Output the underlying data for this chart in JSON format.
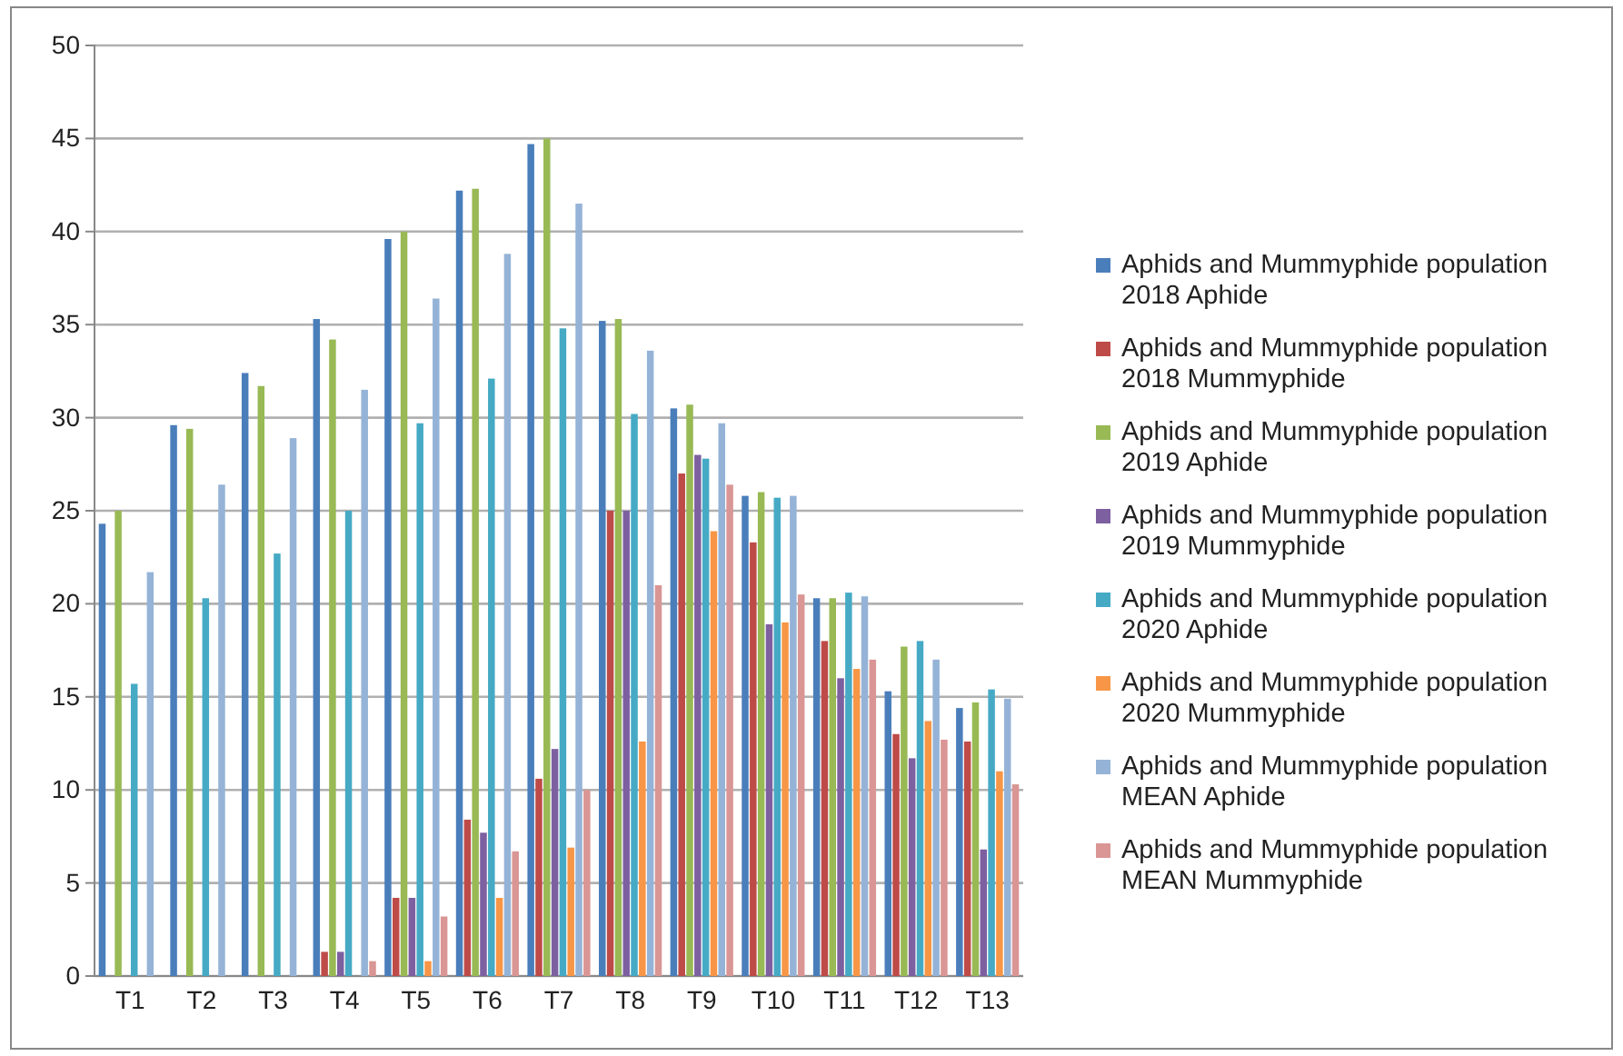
{
  "chart_data": {
    "type": "bar",
    "categories": [
      "T1",
      "T2",
      "T3",
      "T4",
      "T5",
      "T6",
      "T7",
      "T8",
      "T9",
      "T10",
      "T11",
      "T12",
      "T13"
    ],
    "series": [
      {
        "name": "Aphids and Mummyphide population  2018 Aphide",
        "color": "#4a7ebb",
        "values": [
          24.3,
          29.6,
          32.4,
          35.3,
          39.6,
          42.2,
          44.7,
          35.2,
          30.5,
          25.8,
          20.3,
          15.3,
          14.4
        ]
      },
      {
        "name": "Aphids and Mummyphide population  2018 Mummyphide",
        "color": "#be4b48",
        "values": [
          0,
          0,
          0,
          1.3,
          4.2,
          8.4,
          10.6,
          25,
          27,
          23.3,
          18,
          13,
          12.6
        ]
      },
      {
        "name": "Aphids and Mummyphide population  2019 Aphide",
        "color": "#98b954",
        "values": [
          25,
          29.4,
          31.7,
          34.2,
          40,
          42.3,
          45,
          35.3,
          30.7,
          26,
          20.3,
          17.7,
          14.7
        ]
      },
      {
        "name": "Aphids and Mummyphide population  2019 Mummyphide",
        "color": "#7d60a0",
        "values": [
          0,
          0,
          0,
          1.3,
          4.2,
          7.7,
          12.2,
          25,
          28,
          18.9,
          16,
          11.7,
          6.8
        ]
      },
      {
        "name": "Aphids and Mummyphide population  2020 Aphide",
        "color": "#46aac5",
        "values": [
          15.7,
          20.3,
          22.7,
          25,
          29.7,
          32.1,
          34.8,
          30.2,
          27.8,
          25.7,
          20.6,
          18,
          15.4
        ]
      },
      {
        "name": "Aphids and Mummyphide population  2020 Mummyphide",
        "color": "#f79646",
        "values": [
          0,
          0,
          0,
          0,
          0.8,
          4.2,
          6.9,
          12.6,
          23.9,
          19,
          16.5,
          13.7,
          11
        ]
      },
      {
        "name": "Aphids and Mummyphide population  MEAN Aphide",
        "color": "#95b3d7",
        "values": [
          21.7,
          26.4,
          28.9,
          31.5,
          36.4,
          38.8,
          41.5,
          33.6,
          29.7,
          25.8,
          20.4,
          17,
          14.9
        ]
      },
      {
        "name": "Aphids and Mummyphide population  MEAN Mummyphide",
        "color": "#d99694",
        "values": [
          0,
          0,
          0,
          0.8,
          3.2,
          6.7,
          10,
          21,
          26.4,
          20.5,
          17,
          12.7,
          10.3
        ]
      }
    ],
    "ylim": [
      0,
      50
    ],
    "yticks": [
      0,
      5,
      10,
      15,
      20,
      25,
      30,
      35,
      40,
      45,
      50
    ],
    "grid": "y",
    "legend": "right"
  }
}
